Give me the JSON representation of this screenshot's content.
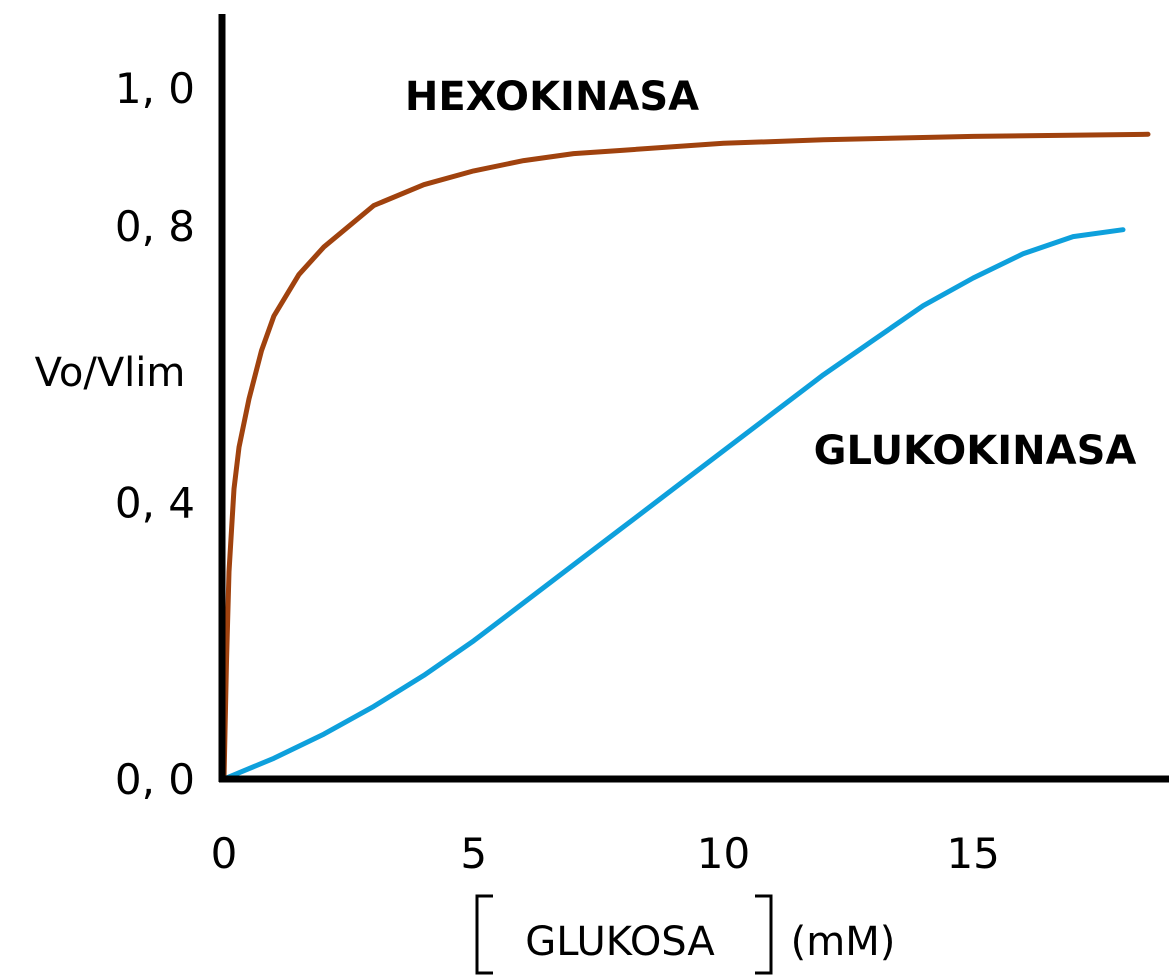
{
  "chart_data": {
    "type": "line",
    "ylabel": "Vo/Vlim",
    "xlabel": {
      "main": "GLUKOSA",
      "unit": "(mM)"
    },
    "xlim": [
      0,
      18.5
    ],
    "ylim": [
      0,
      1.0
    ],
    "x_ticks": [
      {
        "value": 0,
        "label": "0"
      },
      {
        "value": 5,
        "label": "5"
      },
      {
        "value": 10,
        "label": "10"
      },
      {
        "value": 15,
        "label": "15"
      }
    ],
    "y_ticks": [
      {
        "value": 0.0,
        "label": "0, 0"
      },
      {
        "value": 0.4,
        "label": "0, 4"
      },
      {
        "value": 0.8,
        "label": "0, 8"
      },
      {
        "value": 1.0,
        "label": "1, 0"
      }
    ],
    "series": [
      {
        "name": "HEXOKINASA",
        "color": "#a0420e",
        "x": [
          0,
          0.05,
          0.1,
          0.2,
          0.3,
          0.5,
          0.75,
          1.0,
          1.5,
          2.0,
          2.5,
          3.0,
          4.0,
          5.0,
          6.0,
          7.0,
          8.0,
          10.0,
          12.0,
          15.0,
          18.5
        ],
        "y": [
          0.0,
          0.17,
          0.3,
          0.42,
          0.48,
          0.55,
          0.62,
          0.67,
          0.73,
          0.77,
          0.8,
          0.83,
          0.86,
          0.88,
          0.895,
          0.905,
          0.91,
          0.92,
          0.925,
          0.93,
          0.933
        ]
      },
      {
        "name": "GLUKOKINASA",
        "color": "#0ea0dc",
        "x": [
          0,
          1.0,
          2.0,
          3.0,
          4.0,
          5.0,
          6.0,
          7.0,
          8.0,
          9.0,
          10.0,
          11.0,
          12.0,
          13.0,
          14.0,
          15.0,
          16.0,
          17.0,
          18.0
        ],
        "y": [
          0.0,
          0.03,
          0.065,
          0.105,
          0.15,
          0.2,
          0.255,
          0.31,
          0.365,
          0.42,
          0.475,
          0.53,
          0.585,
          0.635,
          0.685,
          0.725,
          0.76,
          0.785,
          0.795
        ]
      }
    ]
  }
}
